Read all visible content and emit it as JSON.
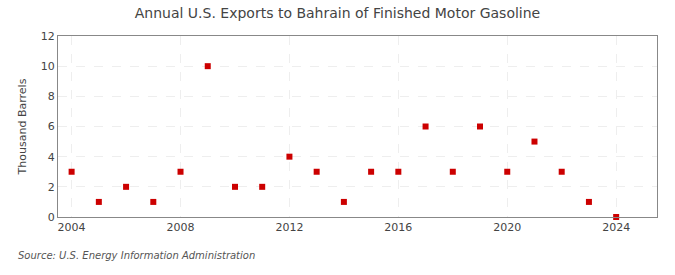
{
  "chart_data": {
    "type": "scatter",
    "title": "Annual U.S. Exports to Bahrain of Finished Motor Gasoline",
    "ylabel": "Thousand Barrels",
    "source": "Source: U.S. Energy Information Administration",
    "x": [
      2004,
      2005,
      2006,
      2007,
      2008,
      2009,
      2010,
      2011,
      2012,
      2013,
      2014,
      2015,
      2016,
      2017,
      2018,
      2019,
      2020,
      2021,
      2022,
      2023,
      2024
    ],
    "values": [
      3,
      1,
      2,
      1,
      3,
      10,
      2,
      2,
      4,
      3,
      1,
      3,
      3,
      6,
      3,
      6,
      3,
      5,
      3,
      1,
      0
    ],
    "color": "#cc0000",
    "marker": "square",
    "xlim": [
      2003.5,
      2025.5
    ],
    "ylim": [
      0,
      12
    ],
    "xticks": [
      2004,
      2008,
      2012,
      2016,
      2020,
      2024
    ],
    "yticks": [
      0,
      2,
      4,
      6,
      8,
      10,
      12
    ],
    "grid": true
  }
}
